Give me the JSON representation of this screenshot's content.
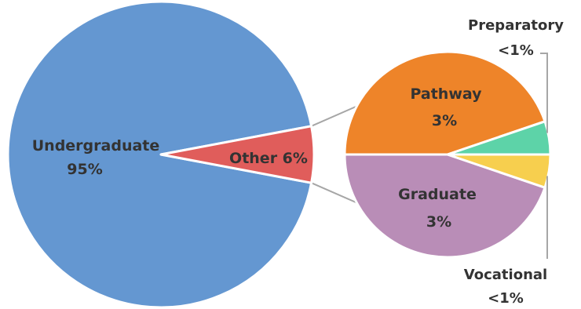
{
  "chart_data": {
    "type": "pie",
    "main": {
      "slices": [
        {
          "name": "Undergraduate",
          "label": "95%",
          "value": 95,
          "color": "#6497d1"
        },
        {
          "name": "Other",
          "label": "Other 6%",
          "value": 6,
          "color": "#e05d5b"
        }
      ]
    },
    "breakdown": {
      "of": "Other",
      "slices": [
        {
          "name": "Pathway",
          "label": "3%",
          "value": 3,
          "color": "#ee8429"
        },
        {
          "name": "Preparatory",
          "label": "<1%",
          "value": 0.35,
          "color": "#5dd3a8"
        },
        {
          "name": "Vocational",
          "label": "<1%",
          "value": 0.35,
          "color": "#f7cf4e"
        },
        {
          "name": "Graduate",
          "label": "3%",
          "value": 3,
          "color": "#b98db7"
        }
      ]
    },
    "title": "",
    "legend": "none"
  }
}
